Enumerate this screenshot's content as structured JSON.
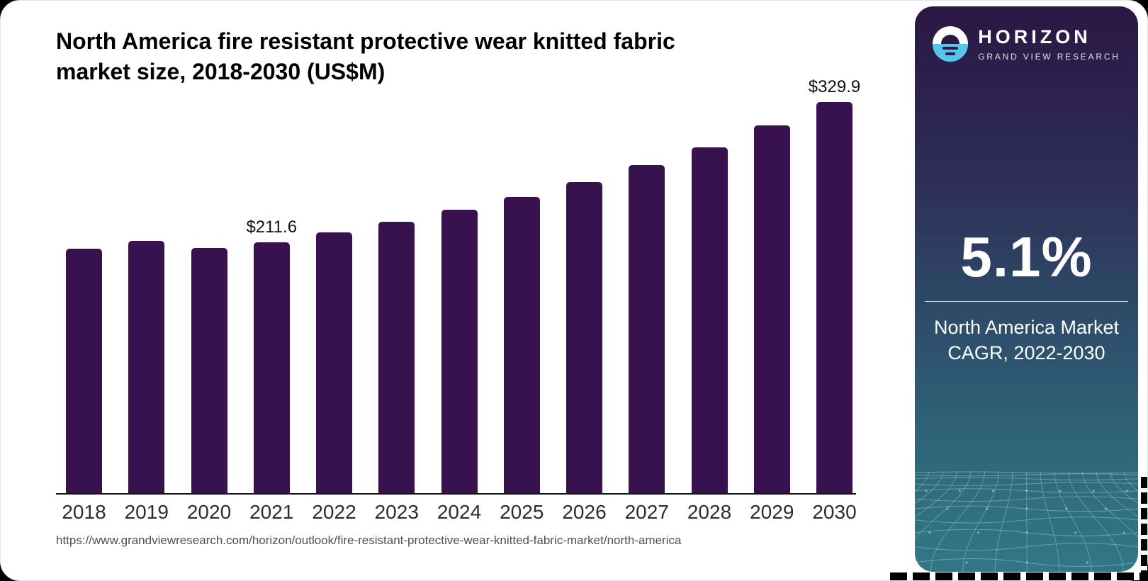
{
  "page": {
    "title_line1": "North America fire resistant protective wear knitted fabric",
    "title_line2": "market size, 2018-2030 (US$M)",
    "source_url": "https://www.grandviewresearch.com/horizon/outlook/fire-resistant-protective-wear-knitted-fabric-market/north-america"
  },
  "sidebar": {
    "brand_name": "HORIZON",
    "brand_subtitle": "GRAND VIEW RESEARCH",
    "cagr_value": "5.1%",
    "cagr_label_line1": "North America Market",
    "cagr_label_line2": "CAGR, 2022-2030"
  },
  "chart_data": {
    "type": "bar",
    "title": "North America fire resistant protective wear knitted fabric market size, 2018-2030 (US$M)",
    "categories": [
      "2018",
      "2019",
      "2020",
      "2021",
      "2022",
      "2023",
      "2024",
      "2025",
      "2026",
      "2027",
      "2028",
      "2029",
      "2030"
    ],
    "values": [
      206.2,
      213.0,
      206.8,
      211.6,
      219.7,
      229.1,
      238.8,
      249.6,
      262.6,
      276.7,
      291.6,
      310.2,
      329.9
    ],
    "value_labels": {
      "2021": "$211.6",
      "2030": "$329.9"
    },
    "unit": "US$M",
    "ylim": [
      0,
      340
    ],
    "grid": false,
    "legend": false,
    "bar_color": "#38124f"
  },
  "colors": {
    "bar": "#38124f",
    "accent_blue": "#56c5e9",
    "sidebar_top": "#2b1843",
    "sidebar_bottom": "#327787",
    "mesh_line": "#a9d6dd"
  }
}
